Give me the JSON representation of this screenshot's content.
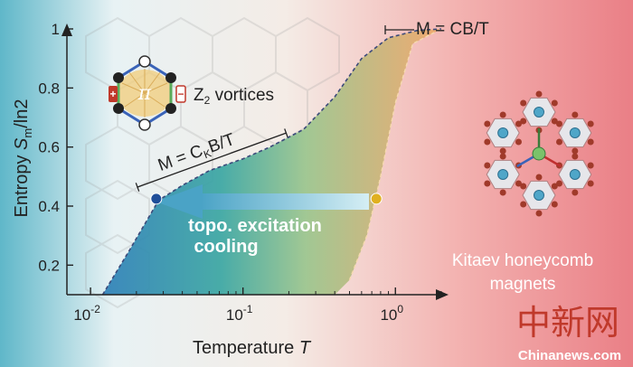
{
  "chart_data": {
    "type": "area",
    "xlabel": "Temperature",
    "xlabel_var": "T",
    "x_scale": "log",
    "xlim": [
      0.007,
      2.0
    ],
    "ylim": [
      0.1,
      1.0
    ],
    "ylabel_prefix": "Entropy ",
    "ylabel_var": "S",
    "ylabel_sub": "m",
    "ylabel_suffix": "/ln2",
    "x_ticks": [
      {
        "value": 0.01,
        "base": "10",
        "exp": "-2"
      },
      {
        "value": 0.1,
        "base": "10",
        "exp": "-1"
      },
      {
        "value": 1,
        "base": "10",
        "exp": "0"
      }
    ],
    "y_ticks": [
      {
        "value": 0.2,
        "label": "0.2"
      },
      {
        "value": 0.4,
        "label": "0.4"
      },
      {
        "value": 0.6,
        "label": "0.6"
      },
      {
        "value": 0.8,
        "label": "0.8"
      },
      {
        "value": 1.0,
        "label": "1"
      }
    ],
    "x": [
      0.012,
      0.018,
      0.028,
      0.04,
      0.06,
      0.1,
      0.15,
      0.25,
      0.4,
      0.6,
      0.9,
      1.4,
      2.0
    ],
    "y": [
      0.1,
      0.25,
      0.42,
      0.47,
      0.52,
      0.56,
      0.6,
      0.66,
      0.77,
      0.9,
      0.97,
      0.995,
      1.0
    ],
    "lower_x": [
      0.012,
      0.1,
      0.4,
      0.5,
      0.65,
      0.8,
      1.0,
      1.3,
      2.0
    ],
    "lower_y": [
      0.1,
      0.1,
      0.1,
      0.15,
      0.3,
      0.5,
      0.75,
      0.95,
      1.0
    ],
    "points": [
      {
        "x": 0.027,
        "y": 0.425,
        "color": "#1f4e99"
      },
      {
        "x": 0.75,
        "y": 0.425,
        "color": "#e0b020"
      }
    ],
    "annotations": {
      "m_top": "M = CB/T",
      "m_ck_prefix": "M = C",
      "m_ck_sub": "K",
      "m_ck_suffix": "B/T",
      "z2_prefix": "Z",
      "z2_sub": "2",
      "z2_suffix": " vortices",
      "pi_symbol": "π",
      "callout_line1": "topo. excitation",
      "callout_line2": "cooling",
      "side_line1": "Kitaev honeycomb",
      "side_line2": "magnets"
    },
    "colors": {
      "point_blue": "#1f4e99",
      "point_orange": "#e0b020",
      "arrow": "#5aa8c8",
      "curve": "#3b4a7a"
    }
  },
  "watermark": {
    "cn": "中新网",
    "en": "Chinanews.com"
  }
}
